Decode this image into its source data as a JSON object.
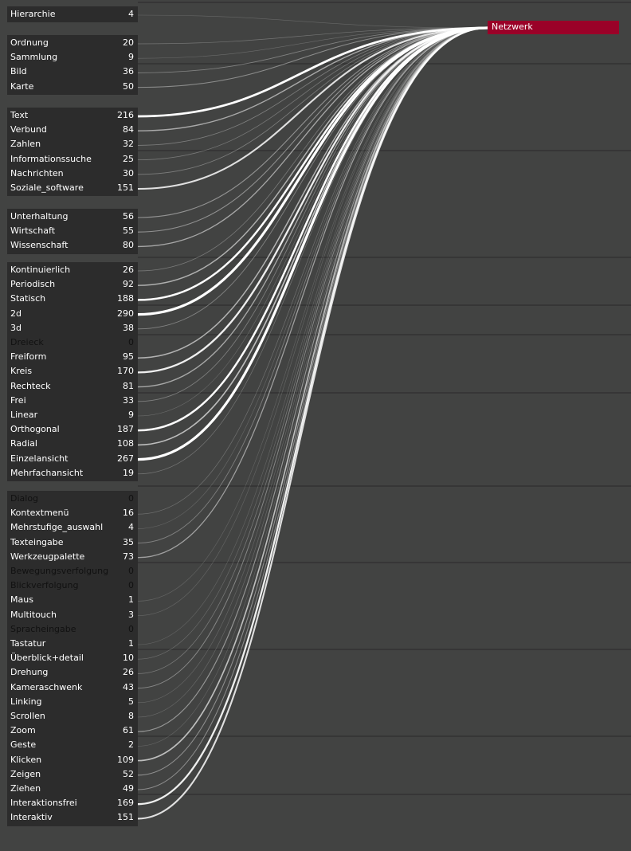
{
  "target": {
    "label": "Netzwerk",
    "color": "#9a0128"
  },
  "colors": {
    "background": "#424342",
    "panel": "#2c2c2c",
    "gridline": "#2a2a2a",
    "flow": "#ffffff"
  },
  "groups": [
    {
      "items": [
        {
          "label": "Hierarchie",
          "count": 4
        }
      ]
    },
    {
      "items": [
        {
          "label": "Ordnung",
          "count": 20
        },
        {
          "label": "Sammlung",
          "count": 9
        },
        {
          "label": "Bild",
          "count": 36
        },
        {
          "label": "Karte",
          "count": 50
        }
      ]
    },
    {
      "items": [
        {
          "label": "Text",
          "count": 216
        },
        {
          "label": "Verbund",
          "count": 84
        },
        {
          "label": "Zahlen",
          "count": 32
        },
        {
          "label": "Informationssuche",
          "count": 25
        },
        {
          "label": "Nachrichten",
          "count": 30
        },
        {
          "label": "Soziale_software",
          "count": 151
        }
      ]
    },
    {
      "items": [
        {
          "label": "Unterhaltung",
          "count": 56
        },
        {
          "label": "Wirtschaft",
          "count": 55
        },
        {
          "label": "Wissenschaft",
          "count": 80
        }
      ]
    },
    {
      "items": [
        {
          "label": "Kontinuierlich",
          "count": 26
        },
        {
          "label": "Periodisch",
          "count": 92
        },
        {
          "label": "Statisch",
          "count": 188
        },
        {
          "label": "2d",
          "count": 290
        },
        {
          "label": "3d",
          "count": 38
        },
        {
          "label": "Dreieck",
          "count": 0
        },
        {
          "label": "Freiform",
          "count": 95
        },
        {
          "label": "Kreis",
          "count": 170
        },
        {
          "label": "Rechteck",
          "count": 81
        },
        {
          "label": "Frei",
          "count": 33
        },
        {
          "label": "Linear",
          "count": 9
        },
        {
          "label": "Orthogonal",
          "count": 187
        },
        {
          "label": "Radial",
          "count": 108
        },
        {
          "label": "Einzelansicht",
          "count": 267
        },
        {
          "label": "Mehrfachansicht",
          "count": 19
        }
      ]
    },
    {
      "items": [
        {
          "label": "Dialog",
          "count": 0
        },
        {
          "label": "Kontextmenü",
          "count": 16
        },
        {
          "label": "Mehrstufige_auswahl",
          "count": 4
        },
        {
          "label": "Texteingabe",
          "count": 35
        },
        {
          "label": "Werkzeugpalette",
          "count": 73
        },
        {
          "label": "Bewegungsverfolgung",
          "count": 0
        },
        {
          "label": "Blickverfolgung",
          "count": 0
        },
        {
          "label": "Maus",
          "count": 1
        },
        {
          "label": "Multitouch",
          "count": 3
        },
        {
          "label": "Spracheingabe",
          "count": 0
        },
        {
          "label": "Tastatur",
          "count": 1
        },
        {
          "label": "Überblick+detail",
          "count": 10
        },
        {
          "label": "Drehung",
          "count": 26
        },
        {
          "label": "Kameraschwenk",
          "count": 43
        },
        {
          "label": "Linking",
          "count": 5
        },
        {
          "label": "Scrollen",
          "count": 8
        },
        {
          "label": "Zoom",
          "count": 61
        },
        {
          "label": "Geste",
          "count": 2
        },
        {
          "label": "Klicken",
          "count": 109
        },
        {
          "label": "Zeigen",
          "count": 52
        },
        {
          "label": "Ziehen",
          "count": 49
        },
        {
          "label": "Interaktionsfrei",
          "count": 169
        },
        {
          "label": "Interaktiv",
          "count": 151
        }
      ]
    }
  ]
}
